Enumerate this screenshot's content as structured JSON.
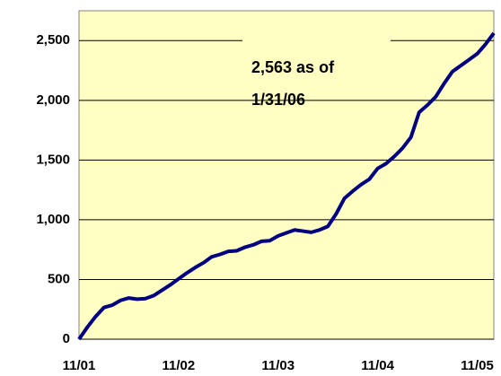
{
  "chart_data": {
    "type": "line",
    "categories": [
      "11/01",
      null,
      null,
      null,
      null,
      null,
      null,
      null,
      null,
      null,
      null,
      null,
      "11/02",
      null,
      null,
      null,
      null,
      null,
      null,
      null,
      null,
      null,
      null,
      null,
      "11/03",
      null,
      null,
      null,
      null,
      null,
      null,
      null,
      null,
      null,
      null,
      null,
      "11/04",
      null,
      null,
      null,
      null,
      null,
      null,
      null,
      null,
      null,
      null,
      null,
      "11/05",
      null,
      null
    ],
    "series": [
      {
        "color": "#000080",
        "values": [
          0,
          100,
          190,
          265,
          285,
          325,
          345,
          335,
          340,
          365,
          410,
          455,
          505,
          555,
          600,
          640,
          690,
          710,
          735,
          740,
          770,
          790,
          820,
          825,
          865,
          890,
          915,
          905,
          895,
          915,
          945,
          1050,
          1180,
          1240,
          1295,
          1340,
          1430,
          1470,
          1530,
          1600,
          1690,
          1900,
          1960,
          2030,
          2140,
          2240,
          2290,
          2340,
          2390,
          2470,
          2563
        ]
      }
    ],
    "ylim": [
      0,
      2750
    ],
    "yticks": [
      0,
      500,
      {
        "value": 1000,
        "label": "1,000"
      },
      {
        "value": 1500,
        "label": "1,500"
      },
      {
        "value": 2000,
        "label": "2,000"
      },
      {
        "value": 2500,
        "label": "2,500"
      }
    ],
    "grid": true,
    "annotation": [
      "2,563  as of",
      "1/31/06"
    ]
  }
}
